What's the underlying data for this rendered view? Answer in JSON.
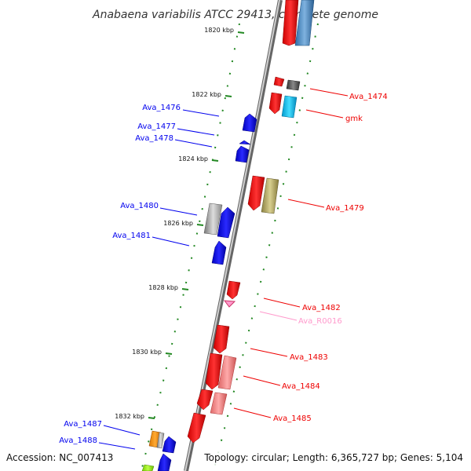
{
  "title": "Anabaena variabilis ATCC 29413, complete genome",
  "footer": {
    "accession": "Accession: NC_007413",
    "summary": "Topology: circular; Length: 6,365,727 bp; Genes: 5,104"
  },
  "ticks": [
    "1820 kbp",
    "1822 kbp",
    "1824 kbp",
    "1826 kbp",
    "1828 kbp",
    "1830 kbp",
    "1832 kbp"
  ],
  "labels": {
    "left": [
      "Ava_1476",
      "Ava_1477",
      "Ava_1478",
      "Ava_1480",
      "Ava_1481",
      "Ava_1487",
      "Ava_1488"
    ],
    "right": [
      "Ava_1474",
      "gmk",
      "Ava_1479",
      "Ava_1482",
      "Ava_R0016",
      "Ava_1483",
      "Ava_1484",
      "Ava_1485"
    ]
  },
  "colors": {
    "reverse_strand": "#0000ee",
    "forward_strand": "#ee0000",
    "rna": "#ff99cc",
    "backbone": "#888888",
    "tick": "#228822"
  }
}
